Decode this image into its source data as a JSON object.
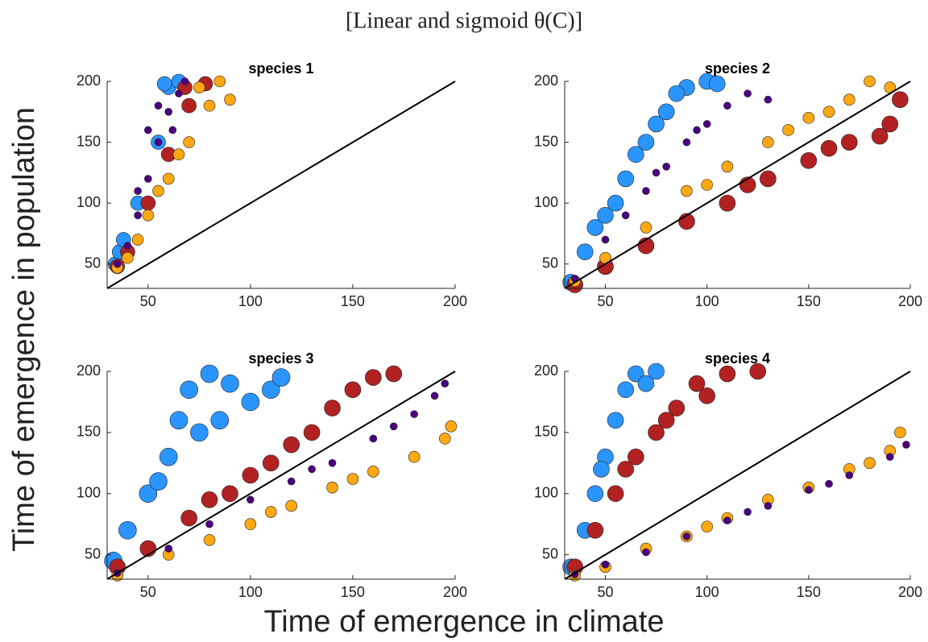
{
  "figure": {
    "title": "[Linear and sigmoid θ(C)]",
    "xlabel": "Time of emergence in climate",
    "ylabel": "Time of emergence in population"
  },
  "chart_data": [
    {
      "type": "scatter",
      "title": "species 1",
      "xlim": [
        30,
        200
      ],
      "ylim": [
        30,
        200
      ],
      "xticks": [
        50,
        100,
        150,
        200
      ],
      "yticks": [
        50,
        100,
        150,
        200
      ],
      "diagonal": true,
      "series": [
        {
          "color": "#2b95ff",
          "size": 9,
          "x": [
            34,
            36,
            38,
            45,
            55,
            60,
            65,
            58
          ],
          "y": [
            50,
            60,
            70,
            100,
            150,
            195,
            200,
            198
          ]
        },
        {
          "color": "#b22222",
          "size": 9,
          "x": [
            35,
            40,
            50,
            60,
            70,
            78,
            68
          ],
          "y": [
            48,
            60,
            100,
            140,
            180,
            198,
            195
          ]
        },
        {
          "color": "#ffa812",
          "size": 7,
          "x": [
            35,
            40,
            50,
            60,
            70,
            80,
            90,
            85,
            75,
            65,
            55,
            45
          ],
          "y": [
            47,
            55,
            90,
            120,
            150,
            180,
            185,
            200,
            195,
            140,
            110,
            70
          ]
        },
        {
          "color": "#4b0082",
          "size": 4.5,
          "x": [
            35,
            40,
            45,
            50,
            55,
            60,
            65,
            55,
            50,
            45,
            62,
            68
          ],
          "y": [
            50,
            65,
            90,
            120,
            150,
            175,
            190,
            180,
            160,
            110,
            160,
            200
          ]
        }
      ]
    },
    {
      "type": "scatter",
      "title": "species 2",
      "xlim": [
        30,
        200
      ],
      "ylim": [
        30,
        200
      ],
      "xticks": [
        50,
        100,
        150,
        200
      ],
      "yticks": [
        50,
        100,
        150,
        200
      ],
      "diagonal": true,
      "series": [
        {
          "color": "#2b95ff",
          "size": 10,
          "x": [
            33,
            40,
            50,
            60,
            70,
            80,
            90,
            100,
            105,
            85,
            45,
            55,
            65,
            75
          ],
          "y": [
            35,
            60,
            90,
            120,
            150,
            175,
            195,
            200,
            198,
            190,
            80,
            100,
            140,
            165
          ]
        },
        {
          "color": "#b22222",
          "size": 10,
          "x": [
            35,
            50,
            70,
            90,
            110,
            130,
            150,
            170,
            190,
            195,
            185,
            120,
            160
          ],
          "y": [
            33,
            48,
            65,
            85,
            100,
            120,
            135,
            150,
            165,
            185,
            155,
            115,
            145
          ]
        },
        {
          "color": "#ffa812",
          "size": 7,
          "x": [
            35,
            50,
            70,
            90,
            110,
            130,
            150,
            170,
            190,
            180,
            100,
            160,
            140
          ],
          "y": [
            36,
            55,
            80,
            110,
            130,
            150,
            170,
            185,
            195,
            200,
            115,
            175,
            160
          ]
        },
        {
          "color": "#4b0082",
          "size": 4.5,
          "x": [
            35,
            50,
            60,
            70,
            80,
            90,
            100,
            110,
            120,
            130,
            75,
            95
          ],
          "y": [
            38,
            70,
            90,
            110,
            130,
            150,
            165,
            180,
            190,
            185,
            125,
            160
          ]
        }
      ]
    },
    {
      "type": "scatter",
      "title": "species 3",
      "xlim": [
        30,
        200
      ],
      "ylim": [
        30,
        200
      ],
      "xticks": [
        50,
        100,
        150,
        200
      ],
      "yticks": [
        50,
        100,
        150,
        200
      ],
      "diagonal": true,
      "series": [
        {
          "color": "#2b95ff",
          "size": 11,
          "x": [
            33,
            40,
            50,
            60,
            65,
            70,
            80,
            90,
            100,
            110,
            115,
            75,
            55,
            85
          ],
          "y": [
            45,
            70,
            100,
            130,
            160,
            185,
            198,
            190,
            175,
            185,
            195,
            150,
            110,
            160
          ]
        },
        {
          "color": "#b22222",
          "size": 10,
          "x": [
            35,
            50,
            70,
            90,
            110,
            130,
            140,
            150,
            160,
            170,
            120,
            100,
            80
          ],
          "y": [
            40,
            55,
            80,
            100,
            125,
            150,
            170,
            185,
            195,
            198,
            140,
            115,
            95
          ]
        },
        {
          "color": "#ffa812",
          "size": 7,
          "x": [
            35,
            60,
            80,
            100,
            120,
            140,
            160,
            180,
            195,
            198,
            150,
            110
          ],
          "y": [
            33,
            50,
            62,
            75,
            90,
            105,
            118,
            130,
            145,
            155,
            112,
            85
          ]
        },
        {
          "color": "#4b0082",
          "size": 4.5,
          "x": [
            35,
            60,
            80,
            100,
            120,
            140,
            160,
            180,
            195,
            190,
            130,
            170
          ],
          "y": [
            35,
            55,
            75,
            95,
            110,
            125,
            145,
            165,
            190,
            180,
            120,
            155
          ]
        }
      ]
    },
    {
      "type": "scatter",
      "title": "species 4",
      "xlim": [
        30,
        200
      ],
      "ylim": [
        30,
        200
      ],
      "xticks": [
        50,
        100,
        150,
        200
      ],
      "yticks": [
        50,
        100,
        150,
        200
      ],
      "diagonal": true,
      "series": [
        {
          "color": "#2b95ff",
          "size": 10,
          "x": [
            33,
            40,
            45,
            50,
            55,
            60,
            65,
            75,
            70,
            48
          ],
          "y": [
            40,
            70,
            100,
            130,
            160,
            185,
            198,
            200,
            190,
            120
          ]
        },
        {
          "color": "#b22222",
          "size": 10,
          "x": [
            35,
            45,
            55,
            65,
            75,
            85,
            95,
            110,
            125,
            80,
            60,
            100
          ],
          "y": [
            40,
            70,
            100,
            130,
            150,
            170,
            190,
            198,
            200,
            160,
            120,
            180
          ]
        },
        {
          "color": "#ffa812",
          "size": 7,
          "x": [
            35,
            50,
            70,
            90,
            110,
            130,
            150,
            170,
            190,
            195,
            180,
            100
          ],
          "y": [
            33,
            40,
            55,
            65,
            80,
            95,
            105,
            120,
            135,
            150,
            125,
            73
          ]
        },
        {
          "color": "#4b0082",
          "size": 4.5,
          "x": [
            35,
            50,
            70,
            90,
            110,
            130,
            150,
            170,
            190,
            198,
            120,
            160
          ],
          "y": [
            34,
            42,
            52,
            65,
            78,
            90,
            103,
            115,
            130,
            140,
            85,
            108
          ]
        }
      ]
    }
  ]
}
